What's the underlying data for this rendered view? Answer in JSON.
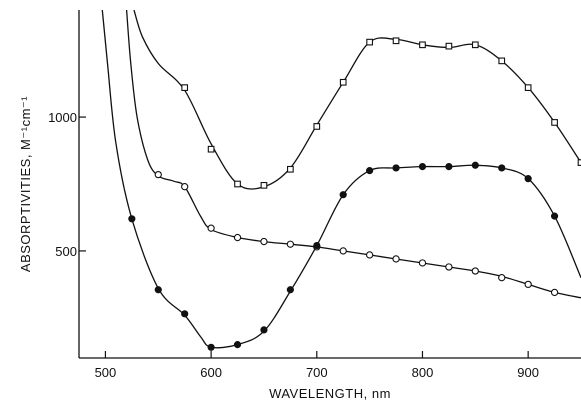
{
  "chart_data": {
    "type": "line",
    "title": "",
    "xlabel": "WAVELENGTH, nm",
    "ylabel": "ABSORPTIVITIES, M⁻¹cm⁻¹",
    "xlim": [
      475,
      950
    ],
    "ylim": [
      100,
      1400
    ],
    "x_ticks": [
      500,
      600,
      700,
      800,
      900
    ],
    "y_ticks": [
      500,
      1000
    ],
    "y_tick_labels": [
      "500",
      "1000"
    ],
    "grid": false,
    "legend": "none",
    "series": [
      {
        "marker": "open-square",
        "curve": [
          [
            527,
            1400
          ],
          [
            535,
            1300
          ],
          [
            550,
            1200
          ],
          [
            575,
            1100
          ],
          [
            600,
            900
          ],
          [
            625,
            750
          ],
          [
            650,
            740
          ],
          [
            675,
            810
          ],
          [
            700,
            970
          ],
          [
            725,
            1130
          ],
          [
            750,
            1280
          ],
          [
            775,
            1290
          ],
          [
            800,
            1270
          ],
          [
            825,
            1260
          ],
          [
            850,
            1270
          ],
          [
            875,
            1210
          ],
          [
            900,
            1110
          ],
          [
            925,
            980
          ],
          [
            950,
            830
          ]
        ],
        "points": [
          [
            575,
            1110
          ],
          [
            600,
            880
          ],
          [
            625,
            750
          ],
          [
            650,
            745
          ],
          [
            675,
            805
          ],
          [
            700,
            965
          ],
          [
            725,
            1130
          ],
          [
            750,
            1280
          ],
          [
            775,
            1285
          ],
          [
            800,
            1270
          ],
          [
            825,
            1265
          ],
          [
            850,
            1270
          ],
          [
            875,
            1210
          ],
          [
            900,
            1110
          ],
          [
            925,
            980
          ],
          [
            950,
            830
          ]
        ]
      },
      {
        "marker": "open-circle",
        "curve": [
          [
            520,
            1400
          ],
          [
            524,
            1200
          ],
          [
            530,
            1000
          ],
          [
            540,
            840
          ],
          [
            550,
            780
          ],
          [
            565,
            760
          ],
          [
            575,
            740
          ],
          [
            590,
            630
          ],
          [
            600,
            580
          ],
          [
            625,
            550
          ],
          [
            650,
            535
          ],
          [
            675,
            525
          ],
          [
            700,
            515
          ],
          [
            725,
            500
          ],
          [
            750,
            485
          ],
          [
            775,
            470
          ],
          [
            800,
            455
          ],
          [
            825,
            440
          ],
          [
            850,
            425
          ],
          [
            875,
            405
          ],
          [
            900,
            375
          ],
          [
            925,
            345
          ],
          [
            950,
            325
          ]
        ],
        "points": [
          [
            550,
            785
          ],
          [
            575,
            740
          ],
          [
            600,
            585
          ],
          [
            625,
            550
          ],
          [
            650,
            535
          ],
          [
            675,
            525
          ],
          [
            700,
            515
          ],
          [
            725,
            500
          ],
          [
            750,
            485
          ],
          [
            775,
            470
          ],
          [
            800,
            455
          ],
          [
            825,
            440
          ],
          [
            850,
            425
          ],
          [
            875,
            400
          ],
          [
            900,
            375
          ],
          [
            925,
            345
          ]
        ]
      },
      {
        "marker": "filled-circle",
        "curve": [
          [
            497,
            1400
          ],
          [
            502,
            1200
          ],
          [
            510,
            900
          ],
          [
            525,
            620
          ],
          [
            550,
            360
          ],
          [
            575,
            260
          ],
          [
            590,
            180
          ],
          [
            600,
            140
          ],
          [
            625,
            150
          ],
          [
            650,
            200
          ],
          [
            675,
            350
          ],
          [
            700,
            520
          ],
          [
            725,
            710
          ],
          [
            750,
            800
          ],
          [
            775,
            810
          ],
          [
            800,
            815
          ],
          [
            825,
            815
          ],
          [
            850,
            820
          ],
          [
            875,
            810
          ],
          [
            900,
            770
          ],
          [
            925,
            630
          ],
          [
            950,
            400
          ]
        ],
        "points": [
          [
            525,
            620
          ],
          [
            550,
            355
          ],
          [
            575,
            265
          ],
          [
            600,
            140
          ],
          [
            625,
            150
          ],
          [
            650,
            205
          ],
          [
            675,
            355
          ],
          [
            700,
            520
          ],
          [
            725,
            710
          ],
          [
            750,
            800
          ],
          [
            775,
            810
          ],
          [
            800,
            815
          ],
          [
            825,
            815
          ],
          [
            850,
            820
          ],
          [
            875,
            810
          ],
          [
            900,
            770
          ],
          [
            925,
            630
          ]
        ]
      }
    ]
  }
}
